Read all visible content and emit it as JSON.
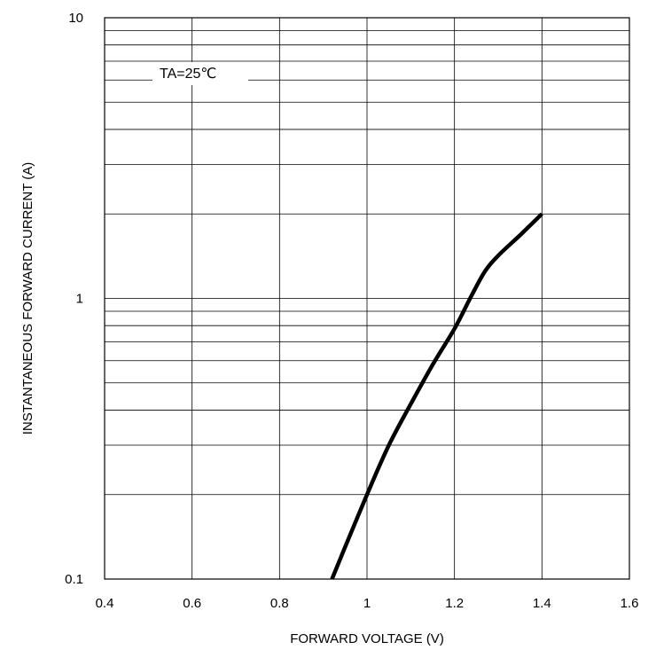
{
  "chart_data": {
    "type": "line",
    "title": "",
    "xlabel": "FORWARD VOLTAGE (V)",
    "ylabel": "INSTANTANEOUS FORWARD CURRENT (A)",
    "xlim": [
      0.4,
      1.6
    ],
    "ylim": [
      0.1,
      10
    ],
    "yscale": "log",
    "grid": true,
    "x_ticks": [
      0.4,
      0.6,
      0.8,
      1.0,
      1.2,
      1.4,
      1.6
    ],
    "x_tick_labels": [
      "0.4",
      "0.6",
      "0.8",
      "1",
      "1.2",
      "1.4",
      "1.6"
    ],
    "y_ticks": [
      0.1,
      1,
      10
    ],
    "y_tick_labels": [
      "0.1",
      "1",
      "10"
    ],
    "annotation": "TA=25℃",
    "series": [
      {
        "x": [
          0.92,
          0.95,
          1.0,
          1.05,
          1.1,
          1.15,
          1.2,
          1.24,
          1.27,
          1.3,
          1.35,
          1.4
        ],
        "y": [
          0.1,
          0.13,
          0.2,
          0.3,
          0.42,
          0.58,
          0.78,
          1.03,
          1.25,
          1.42,
          1.68,
          2.0
        ]
      }
    ],
    "colors": {
      "line": "#000000",
      "grid": "#000000",
      "axes": "#000000"
    }
  }
}
